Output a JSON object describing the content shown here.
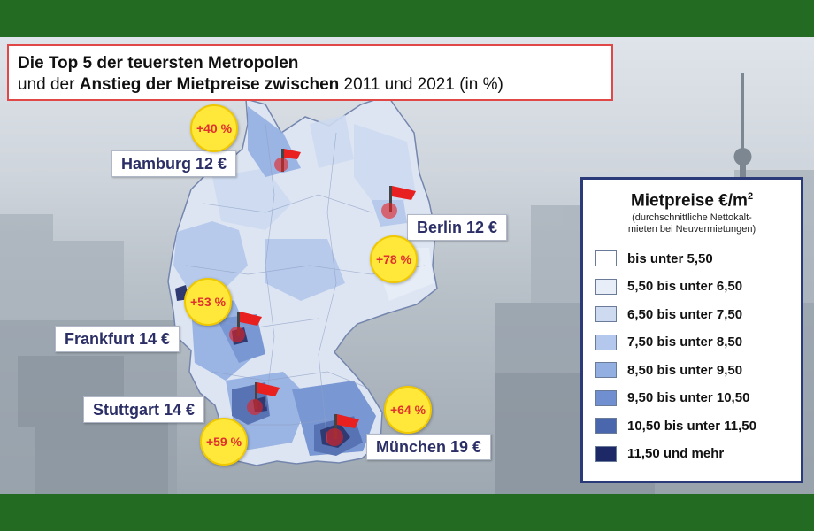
{
  "title": {
    "line1": "Die Top 5 der teuersten Metropolen",
    "line2_pre": "und der ",
    "line2_bold": "Anstieg der Mietpreise zwischen",
    "line2_post": " 2011 und 2021 (in %)"
  },
  "cities": [
    {
      "name": "Hamburg 12 €",
      "increase": "+40 %"
    },
    {
      "name": "Berlin 12 €",
      "increase": "+78 %"
    },
    {
      "name": "Frankfurt 14 €",
      "increase": "+53 %"
    },
    {
      "name": "Stuttgart 14 €",
      "increase": "+59 %"
    },
    {
      "name": "München 19 €",
      "increase": "+64 %"
    }
  ],
  "legend": {
    "title": "Mietpreise €/m",
    "title_sup": "2",
    "subtitle_line1": "(durchschnittliche Nettokalt-",
    "subtitle_line2": "mieten bei Neuvermietungen)",
    "items": [
      {
        "label": "bis unter 5,50",
        "color": "#ffffff"
      },
      {
        "label": "5,50 bis unter 6,50",
        "color": "#e8eef8"
      },
      {
        "label": "6,50 bis unter 7,50",
        "color": "#cddaf0"
      },
      {
        "label": "7,50 bis unter 8,50",
        "color": "#b3c8ec"
      },
      {
        "label": "8,50 bis unter 9,50",
        "color": "#93afe2"
      },
      {
        "label": "9,50 bis unter 10,50",
        "color": "#6f8fd0"
      },
      {
        "label": "10,50 bis unter 11,50",
        "color": "#4a67ad"
      },
      {
        "label": "11,50 und mehr",
        "color": "#1d2866"
      }
    ]
  },
  "colors": {
    "frame": "#236b23",
    "flag": "#e82020",
    "badge": "#ffe83a",
    "label_text": "#2b2f66"
  }
}
